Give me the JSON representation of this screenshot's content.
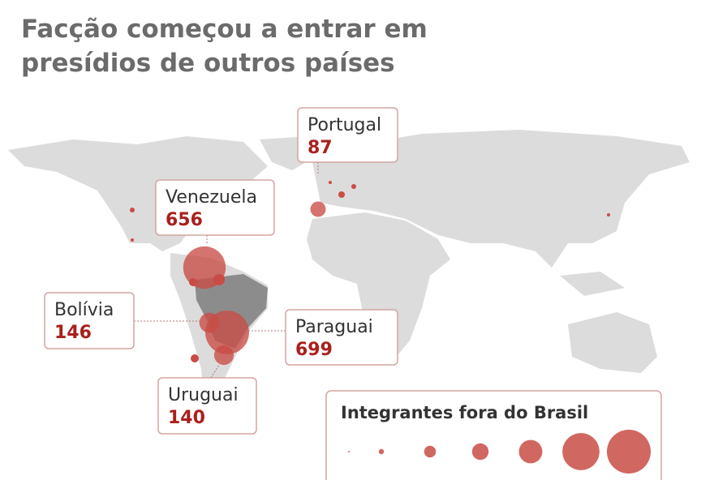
{
  "subtitle": [
    "Facção começou a entrar em",
    "presídios de outros países"
  ],
  "callouts": [
    {
      "country": "Portugal",
      "value": 87
    },
    {
      "country": "Venezuela",
      "value": 656
    },
    {
      "country": "Bolívia",
      "value": 146
    },
    {
      "country": "Paraguai",
      "value": 699
    },
    {
      "country": "Uruguai",
      "value": 140
    }
  ],
  "bubble_color": "#c94c45",
  "legend": {
    "title": "Integrantes fora do Brasil",
    "sizes": [
      1,
      10,
      50,
      100,
      200,
      500,
      700
    ]
  }
}
